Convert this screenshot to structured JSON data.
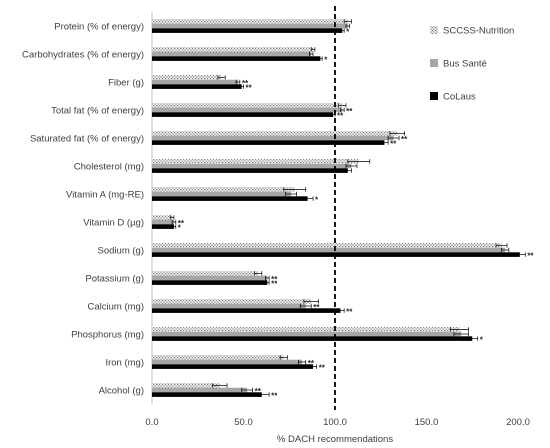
{
  "chart_data": {
    "type": "bar",
    "orientation": "horizontal",
    "title": "",
    "xlabel": "% DACH recommendations",
    "ylabel": "",
    "xlim": [
      0,
      200
    ],
    "xticks": [
      "0.0",
      "50.0",
      "100.0",
      "150.0",
      "200.0"
    ],
    "reference_line": 100,
    "legend_position": "right",
    "categories": [
      "Protein (% of energy)",
      "Carbohydrates (% of energy)",
      "Fiber (g)",
      "Total fat (% of energy)",
      "Saturated fat (% of energy)",
      "Cholesterol (mg)",
      "Vitamin A (mg-RE)",
      "Vitamin D (µg)",
      "Sodium (g)",
      "Potassium (g)",
      "Calcium (mg)",
      "Phosphorus (mg)",
      "Iron (mg)",
      "Alcohol (g)"
    ],
    "series": [
      {
        "name": "SCCSS-Nutrition",
        "color": "#d9d9d9",
        "pattern": "dotted",
        "values": [
          107,
          88,
          38,
          104,
          134,
          113,
          78,
          11,
          191,
          58,
          87,
          168,
          72,
          37
        ],
        "errors": [
          2,
          1,
          2,
          2,
          4,
          6,
          6,
          1,
          3,
          2,
          4,
          5,
          2,
          4
        ],
        "sig": [
          "",
          "",
          "",
          "",
          "",
          "",
          "",
          "",
          "",
          "",
          "",
          "",
          "",
          ""
        ]
      },
      {
        "name": "Bus Santé",
        "color": "#a6a6a6",
        "pattern": "solid",
        "values": [
          107,
          87,
          47,
          104,
          132,
          109,
          76,
          12,
          193,
          63,
          84,
          169,
          82,
          52
        ],
        "errors": [
          1,
          1,
          1,
          1,
          3,
          3,
          3,
          1,
          2,
          1,
          3,
          4,
          2,
          3
        ],
        "sig": [
          "",
          "",
          "**",
          "**",
          "**",
          "",
          "",
          "**",
          "",
          "**",
          "**",
          "",
          "**",
          "**"
        ]
      },
      {
        "name": "CoLaus",
        "color": "#000000",
        "pattern": "solid",
        "values": [
          104,
          92,
          49,
          99,
          127,
          107,
          85,
          12,
          201,
          63,
          103,
          175,
          88,
          60
        ],
        "errors": [
          1,
          1,
          1,
          1,
          2,
          2,
          3,
          1,
          3,
          1,
          2,
          3,
          2,
          4
        ],
        "sig": [
          "*",
          "*",
          "**",
          "**",
          "**",
          "",
          "*",
          "*",
          "**",
          "**",
          "**",
          "*",
          "**",
          "**"
        ]
      }
    ]
  }
}
